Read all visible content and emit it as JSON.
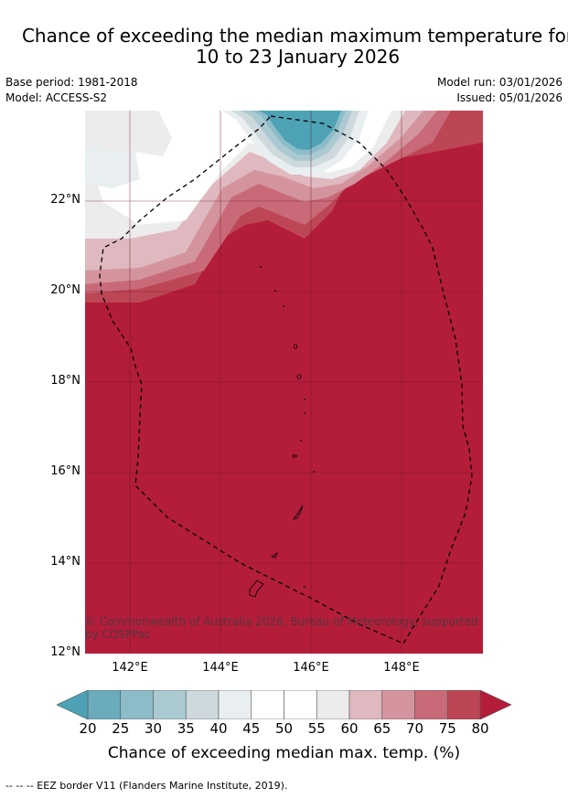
{
  "header": {
    "title_line1": "Chance of exceeding the median maximum temperature for",
    "title_line2": "10 to 23 January 2026",
    "base_period": "Base period: 1981-2018",
    "model": "Model: ACCESS-S2",
    "model_run": "Model run: 03/01/2026",
    "issued": "Issued: 05/01/2026"
  },
  "map": {
    "lat_labels": [
      "22°N",
      "20°N",
      "18°N",
      "16°N",
      "14°N",
      "12°N"
    ],
    "lon_labels": [
      "142°E",
      "144°E",
      "146°E",
      "148°E"
    ],
    "copyright": "© Commonwealth of Australia 2026, Bureau of Meteorology, supported by COSPPac",
    "colors": {
      "high": "#b31d3a",
      "ocean_low": "#4da3b5"
    }
  },
  "colorbar": {
    "ticks": [
      "20",
      "25",
      "30",
      "35",
      "40",
      "45",
      "50",
      "55",
      "60",
      "65",
      "70",
      "75",
      "80"
    ],
    "colors": [
      "#4da3b5",
      "#6aacbb",
      "#8bbcc8",
      "#aac9d0",
      "#cdd9dc",
      "#e9eff1",
      "#ffffff",
      "#ffffff",
      "#ececec",
      "#e0b8bf",
      "#d4949e",
      "#c96a79",
      "#bd4656",
      "#b31d3a"
    ],
    "label": "Chance of exceeding median max. temp. (%)"
  },
  "footnote": "--  --  -- EEZ border V11 (Flanders Marine Institute, 2019)."
}
